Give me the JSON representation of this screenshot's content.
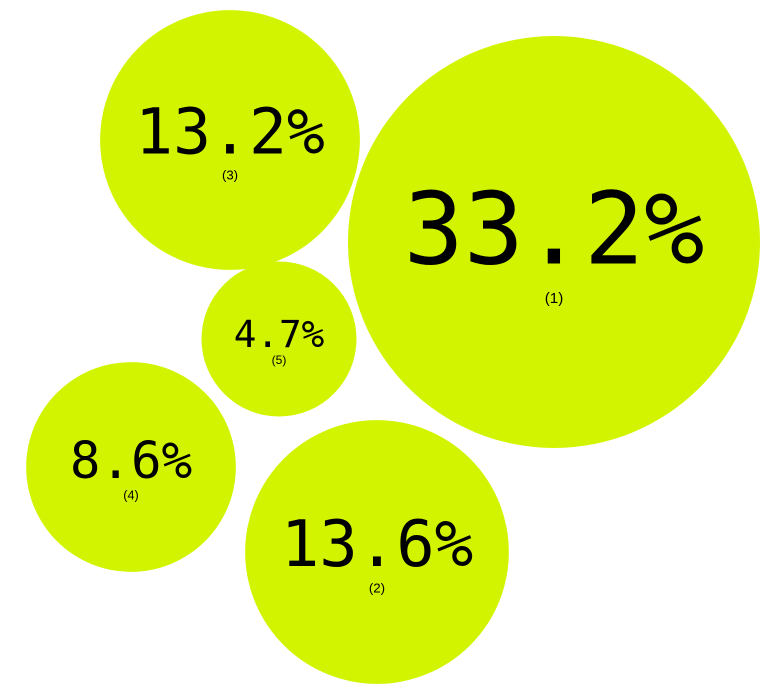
{
  "chart_data": {
    "type": "bubble",
    "title": "",
    "bubble_color": "#d2f400",
    "text_color": "#000000",
    "bubbles": [
      {
        "label": "(1)",
        "value": 33.2,
        "value_text": "33.2%"
      },
      {
        "label": "(2)",
        "value": 13.6,
        "value_text": "13.6%"
      },
      {
        "label": "(3)",
        "value": 13.2,
        "value_text": "13.2%"
      },
      {
        "label": "(4)",
        "value": 8.6,
        "value_text": "8.6%"
      },
      {
        "label": "(5)",
        "value": 4.7,
        "value_text": "4.7%"
      }
    ]
  }
}
